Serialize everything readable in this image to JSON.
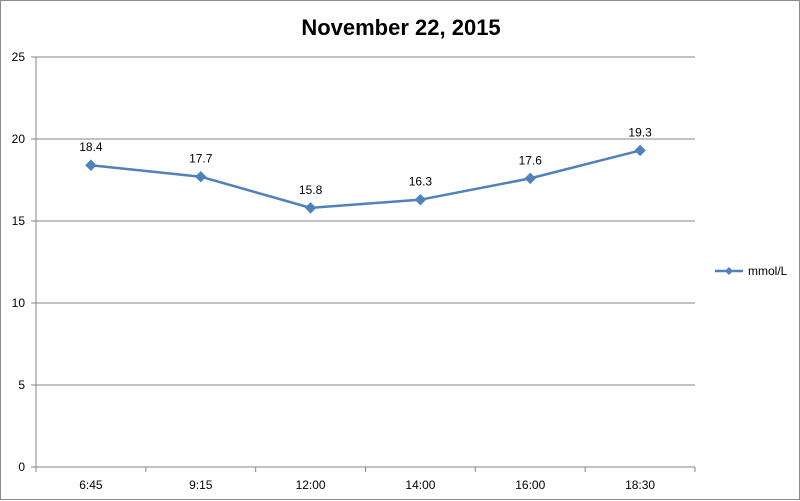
{
  "chart_data": {
    "type": "line",
    "title": "November 22, 2015",
    "xlabel": "",
    "ylabel": "",
    "categories": [
      "6:45",
      "9:15",
      "12:00",
      "14:00",
      "16:00",
      "18:30"
    ],
    "series": [
      {
        "name": "mmol/L",
        "values": [
          18.4,
          17.7,
          15.8,
          16.3,
          17.6,
          19.3
        ],
        "color": "#4F81BD",
        "marker": "diamond"
      }
    ],
    "ylim": [
      0,
      25
    ],
    "yticks": [
      0,
      5,
      10,
      15,
      20,
      25
    ],
    "data_labels": true,
    "grid": "horizontal",
    "legend": "right"
  }
}
